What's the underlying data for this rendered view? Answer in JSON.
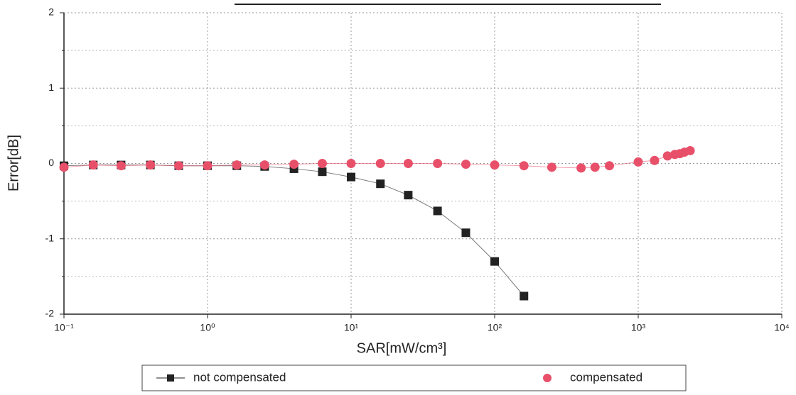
{
  "chart_data": {
    "type": "line",
    "x_label": "SAR[mW/cm³]",
    "y_label": "Error[dB]",
    "xscale": "log",
    "xlim": [
      0.1,
      10000
    ],
    "xticks": [
      {
        "value": 0.1,
        "label": "10⁻¹"
      },
      {
        "value": 1,
        "label": "10⁰"
      },
      {
        "value": 10,
        "label": "10¹"
      },
      {
        "value": 100,
        "label": "10²"
      },
      {
        "value": 1000,
        "label": "10³"
      },
      {
        "value": 10000,
        "label": "10⁴"
      }
    ],
    "ylim": [
      -2,
      2
    ],
    "yticks": [
      -2,
      -1,
      0,
      1,
      2
    ],
    "y_minor_ticks": [
      -1.5,
      -0.5,
      0.5,
      1.5
    ],
    "grid": true,
    "legend": "bottom",
    "series": [
      {
        "name": "not compensated",
        "color": "#222222",
        "marker": "square",
        "x": [
          0.1,
          0.16,
          0.25,
          0.4,
          0.63,
          1,
          1.6,
          2.5,
          4,
          6.3,
          10,
          16,
          25,
          40,
          63,
          100,
          160
        ],
        "values": [
          -0.03,
          -0.02,
          -0.02,
          -0.02,
          -0.03,
          -0.03,
          -0.03,
          -0.04,
          -0.07,
          -0.11,
          -0.18,
          -0.27,
          -0.42,
          -0.63,
          -0.92,
          -1.3,
          -1.76
        ]
      },
      {
        "name": "compensated",
        "color": "#e8506a",
        "marker": "circle",
        "x": [
          0.1,
          0.16,
          0.25,
          0.4,
          0.63,
          1,
          1.6,
          2.5,
          4,
          6.3,
          10,
          16,
          25,
          40,
          63,
          100,
          160,
          250,
          400,
          500,
          630,
          1000,
          1300,
          1600,
          1800,
          1950,
          2100,
          2300
        ],
        "values": [
          -0.05,
          -0.02,
          -0.03,
          -0.02,
          -0.03,
          -0.03,
          -0.02,
          -0.02,
          -0.01,
          0.0,
          0.0,
          0.0,
          0.0,
          0.0,
          -0.01,
          -0.02,
          -0.03,
          -0.05,
          -0.06,
          -0.05,
          -0.03,
          0.02,
          0.04,
          0.1,
          0.12,
          0.13,
          0.15,
          0.17
        ]
      }
    ]
  }
}
